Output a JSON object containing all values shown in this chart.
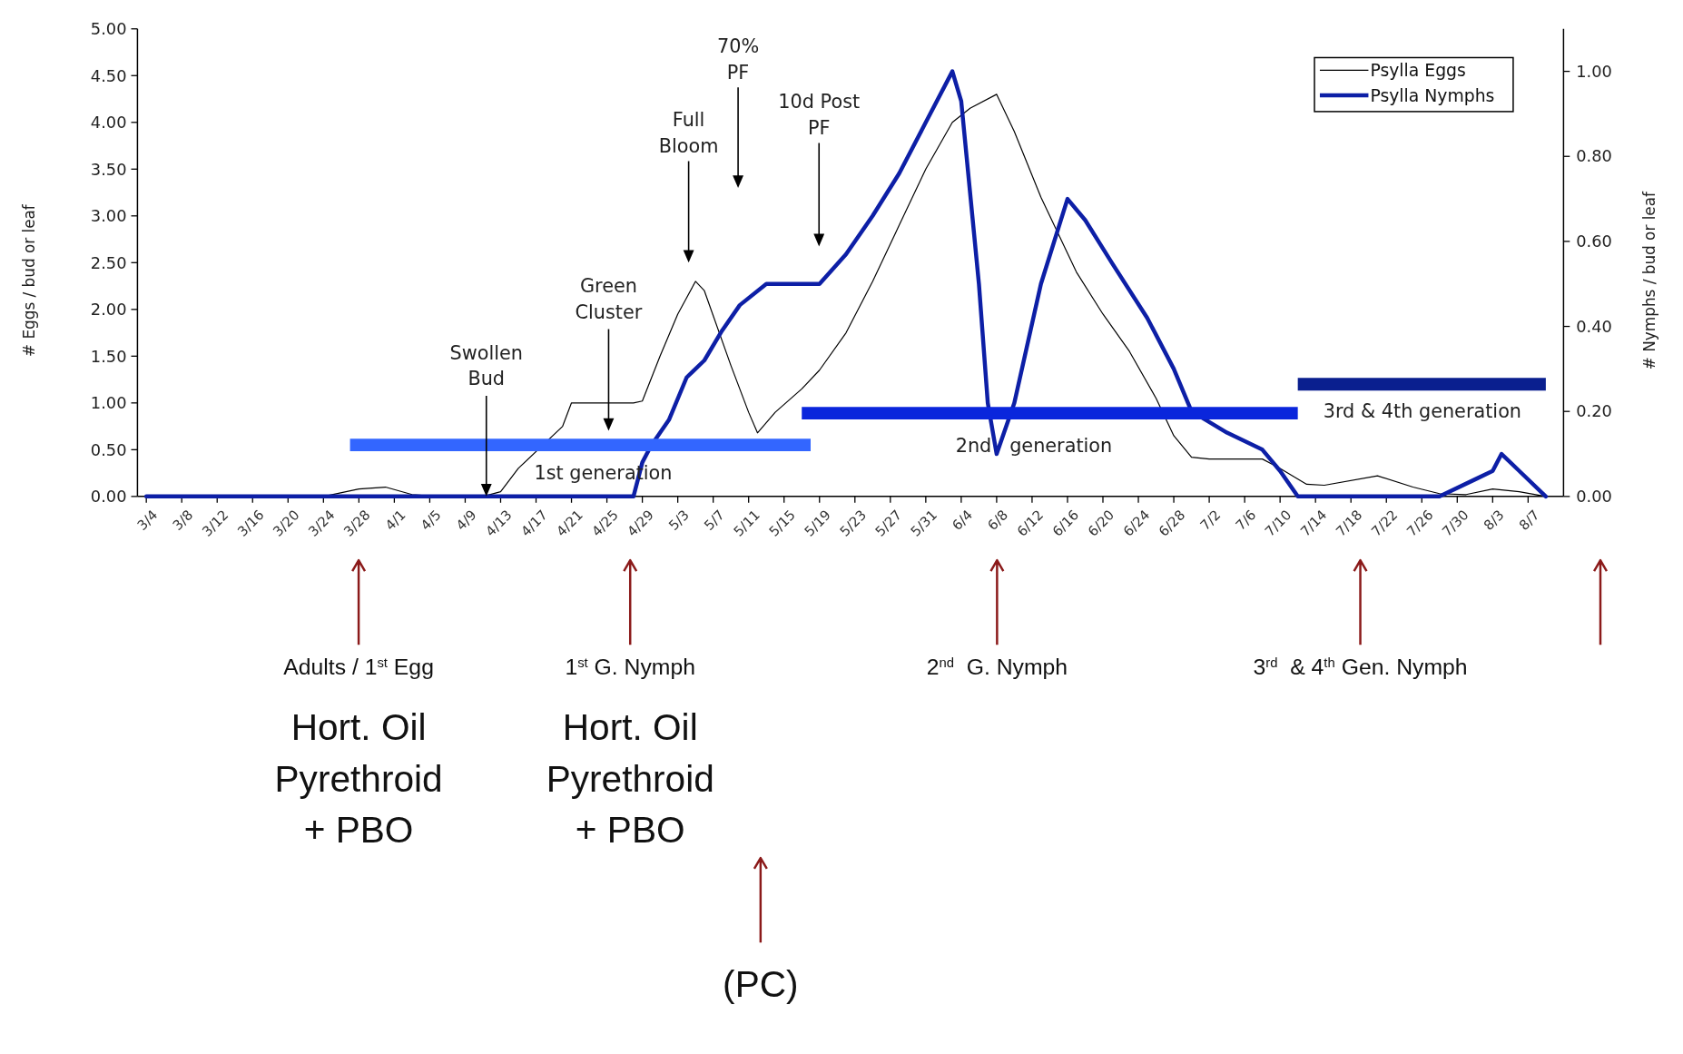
{
  "chart_data": {
    "type": "line",
    "xlabel": null,
    "ylabel": "# Eggs / bud or leaf",
    "y2label": "# Nymphs / bud or leaf",
    "xlim": [
      "--03-03",
      "--08-11"
    ],
    "xticks": [
      {
        "value": "--03-04",
        "label": "3/4"
      },
      {
        "value": "--03-08",
        "label": "3/8"
      },
      {
        "value": "--03-12",
        "label": "3/12"
      },
      {
        "value": "--03-16",
        "label": "3/16"
      },
      {
        "value": "--03-20",
        "label": "3/20"
      },
      {
        "value": "--03-24",
        "label": "3/24"
      },
      {
        "value": "--03-28",
        "label": "3/28"
      },
      {
        "value": "--04-01",
        "label": "4/1"
      },
      {
        "value": "--04-05",
        "label": "4/5"
      },
      {
        "value": "--04-09",
        "label": "4/9"
      },
      {
        "value": "--04-13",
        "label": "4/13"
      },
      {
        "value": "--04-17",
        "label": "4/17"
      },
      {
        "value": "--04-21",
        "label": "4/21"
      },
      {
        "value": "--04-25",
        "label": "4/25"
      },
      {
        "value": "--04-29",
        "label": "4/29"
      },
      {
        "value": "--05-03",
        "label": "5/3"
      },
      {
        "value": "--05-07",
        "label": "5/7"
      },
      {
        "value": "--05-11",
        "label": "5/11"
      },
      {
        "value": "--05-15",
        "label": "5/15"
      },
      {
        "value": "--05-19",
        "label": "5/19"
      },
      {
        "value": "--05-23",
        "label": "5/23"
      },
      {
        "value": "--05-27",
        "label": "5/27"
      },
      {
        "value": "--05-31",
        "label": "5/31"
      },
      {
        "value": "--06-04",
        "label": "6/4"
      },
      {
        "value": "--06-08",
        "label": "6/8"
      },
      {
        "value": "--06-12",
        "label": "6/12"
      },
      {
        "value": "--06-16",
        "label": "6/16"
      },
      {
        "value": "--06-20",
        "label": "6/20"
      },
      {
        "value": "--06-24",
        "label": "6/24"
      },
      {
        "value": "--06-28",
        "label": "6/28"
      },
      {
        "value": "--07-02",
        "label": "7/2"
      },
      {
        "value": "--07-06",
        "label": "7/6"
      },
      {
        "value": "--07-10",
        "label": "7/10"
      },
      {
        "value": "--07-14",
        "label": "7/14"
      },
      {
        "value": "--07-18",
        "label": "7/18"
      },
      {
        "value": "--07-22",
        "label": "7/22"
      },
      {
        "value": "--07-26",
        "label": "7/26"
      },
      {
        "value": "--07-30",
        "label": "7/30"
      },
      {
        "value": "--08-03",
        "label": "8/3"
      },
      {
        "value": "--08-07",
        "label": "8/7"
      }
    ],
    "ylim": [
      0,
      5
    ],
    "yticks": [
      {
        "value": 0,
        "label": "0.00"
      },
      {
        "value": 0.5,
        "label": "0.50"
      },
      {
        "value": 1,
        "label": "1.00"
      },
      {
        "value": 1.5,
        "label": "1.50"
      },
      {
        "value": 2,
        "label": "2.00"
      },
      {
        "value": 2.5,
        "label": "2.50"
      },
      {
        "value": 3,
        "label": "3.00"
      },
      {
        "value": 3.5,
        "label": "3.50"
      },
      {
        "value": 4,
        "label": "4.00"
      },
      {
        "value": 4.5,
        "label": "4.50"
      },
      {
        "value": 5,
        "label": "5.00"
      }
    ],
    "y2lim": [
      0,
      1.1
    ],
    "y2ticks": [
      {
        "value": 0,
        "label": "0.00"
      },
      {
        "value": 0.2,
        "label": "0.20"
      },
      {
        "value": 0.4,
        "label": "0.40"
      },
      {
        "value": 0.6,
        "label": "0.60"
      },
      {
        "value": 0.8,
        "label": "0.80"
      },
      {
        "value": 1,
        "label": "1.00"
      }
    ],
    "legend": "top right",
    "series": [
      {
        "name": "Psylla Eggs",
        "color": "#000000",
        "x": [
          "--03-04",
          "--03-24",
          "--03-28",
          "--03-31",
          "--04-03",
          "--04-06",
          "--04-11",
          "--04-13",
          "--04-15",
          "--04-18",
          "--04-20",
          "--04-21",
          "--04-22",
          "--04-28",
          "--04-29",
          "--05-01",
          "--05-03",
          "--05-05",
          "--05-06",
          "--05-09",
          "--05-11",
          "--05-12",
          "--05-14",
          "--05-17",
          "--05-19",
          "--05-22",
          "--05-25",
          "--05-28",
          "--05-31",
          "--06-03",
          "--06-05",
          "--06-08",
          "--06-10",
          "--06-13",
          "--06-17",
          "--06-20",
          "--06-23",
          "--06-26",
          "--06-28",
          "--06-30",
          "--07-02",
          "--07-08",
          "--07-10",
          "--07-13",
          "--07-15",
          "--07-21",
          "--07-25",
          "--07-28",
          "--07-31",
          "--08-03",
          "--08-06",
          "--08-09"
        ],
        "values": [
          0,
          0,
          0.08,
          0.1,
          0.02,
          0,
          0,
          0.05,
          0.3,
          null,
          0.75,
          1.0,
          1.0,
          1.0,
          1.02,
          1.5,
          1.95,
          2.3,
          2.2,
          1.4,
          0.9,
          0.68,
          0.9,
          1.15,
          1.35,
          1.75,
          2.3,
          2.9,
          3.5,
          4.0,
          4.15,
          4.3,
          3.9,
          3.2,
          2.4,
          1.95,
          1.55,
          1.05,
          0.65,
          0.42,
          0.4,
          0.4,
          0.3,
          0.13,
          0.12,
          0.22,
          0.1,
          0.03,
          0.02,
          0.08,
          0.05,
          0
        ]
      },
      {
        "name": "Psylla Nymphs",
        "color": "#0d1fa6",
        "axis": "y2",
        "x": [
          "--03-04",
          "--04-28",
          "--04-29",
          "--04-30",
          "--05-02",
          "--05-04",
          "--05-06",
          "--05-08",
          "--05-10",
          "--05-13",
          "--05-19",
          "--05-22",
          "--05-25",
          "--05-28",
          "--05-31",
          "--06-03",
          "--06-04",
          "--06-06",
          "--06-07",
          "--06-08",
          "--06-10",
          "--06-13",
          "--06-16",
          "--06-18",
          "--06-21",
          "--06-25",
          "--06-28",
          "--06-30",
          "--07-04",
          "--07-08",
          "--07-10",
          "--07-12",
          "--07-28",
          "--08-01",
          "--08-03",
          "--08-04",
          "--08-06",
          "--08-09"
        ],
        "values": [
          0,
          0,
          0.08,
          0.12,
          0.18,
          0.28,
          0.32,
          0.39,
          0.45,
          0.5,
          0.5,
          0.57,
          0.66,
          0.76,
          0.88,
          1.0,
          0.93,
          0.5,
          0.22,
          0.1,
          0.22,
          0.5,
          0.7,
          0.65,
          0.55,
          0.42,
          0.3,
          0.2,
          0.15,
          0.11,
          0.06,
          0,
          0,
          0.04,
          0.06,
          0.1,
          0.06,
          0
        ]
      },
      {
        "color": "#3366ff",
        "x": [
          "--03-27",
          "--05-18"
        ],
        "values": [
          0.55,
          0.55
        ]
      },
      {
        "color": "#0a26dc",
        "x": [
          "--05-17",
          "--07-12"
        ],
        "values": [
          0.89,
          0.89
        ]
      },
      {
        "color": "#0a1f8f",
        "x": [
          "--07-12",
          "--08-09"
        ],
        "values": [
          1.2,
          1.2
        ]
      }
    ],
    "annotations": [
      "Swollen\nBud",
      "Green\nCluster",
      "Full\nBloom",
      "70%\nPF",
      "10d Post\nPF",
      "1st generation",
      "2nd   generation",
      "3rd & 4th generation",
      "Adults / 1$^{st}$ Egg",
      "Hort. Oil\nPyrethroid\n+ PBO",
      "1$^{st}$ G. Nymph",
      "Hort. Oil\nPyrethroid\n+ PBO",
      "2$^{nd}$  G. Nymph",
      "3$^{rd}$  & 4$^{th}$ Gen. Nymph",
      "(PC)"
    ]
  }
}
